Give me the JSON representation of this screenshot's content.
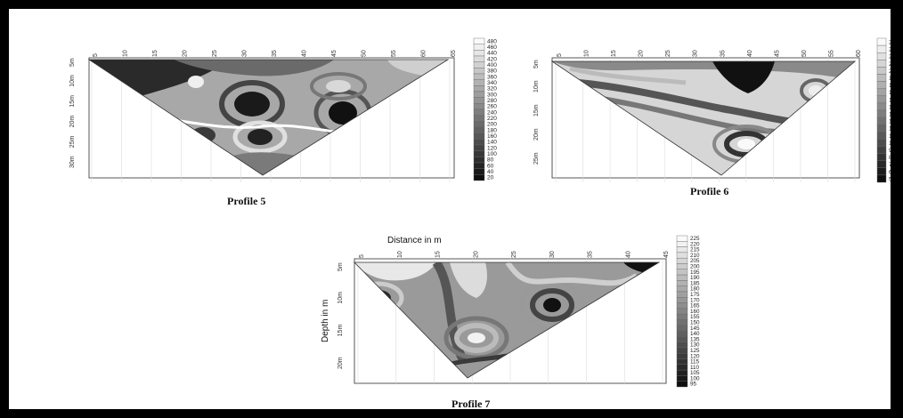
{
  "figure": {
    "captions": {
      "p5": "Profile 5",
      "p6": "Profile 6",
      "p7": "Profile 7"
    }
  },
  "p5": {
    "legend": [
      "480",
      "460",
      "440",
      "420",
      "400",
      "380",
      "360",
      "340",
      "320",
      "300",
      "280",
      "260",
      "240",
      "220",
      "200",
      "180",
      "160",
      "140",
      "120",
      "100",
      "80",
      "60",
      "40",
      "20"
    ],
    "xticks": [
      "5",
      "10",
      "15",
      "20",
      "25",
      "30",
      "35",
      "40",
      "45",
      "50",
      "55",
      "60",
      "65"
    ],
    "yticks": [
      "5m",
      "10m",
      "15m",
      "20m",
      "25m",
      "30m"
    ]
  },
  "p6": {
    "legend": [
      "240",
      "230",
      "220",
      "210",
      "200",
      "190",
      "180",
      "170",
      "160",
      "150",
      "140",
      "130",
      "120",
      "110",
      "100",
      "90",
      "80",
      "70",
      "60",
      "50"
    ],
    "xticks": [
      "5",
      "10",
      "15",
      "20",
      "25",
      "30",
      "35",
      "40",
      "45",
      "50",
      "55",
      "60"
    ],
    "yticks": [
      "5m",
      "10m",
      "15m",
      "20m",
      "25m"
    ]
  },
  "p7": {
    "xlabel": "Distance in m",
    "ylabel": "Depth in m",
    "legend": [
      "225",
      "220",
      "215",
      "210",
      "205",
      "200",
      "195",
      "190",
      "185",
      "180",
      "175",
      "170",
      "165",
      "160",
      "155",
      "150",
      "145",
      "140",
      "135",
      "130",
      "125",
      "120",
      "115",
      "110",
      "105",
      "100",
      "95"
    ],
    "xticks": [
      "5",
      "10",
      "15",
      "20",
      "25",
      "30",
      "35",
      "40",
      "45"
    ],
    "yticks": [
      "5m",
      "10m",
      "15m",
      "20m"
    ]
  }
}
